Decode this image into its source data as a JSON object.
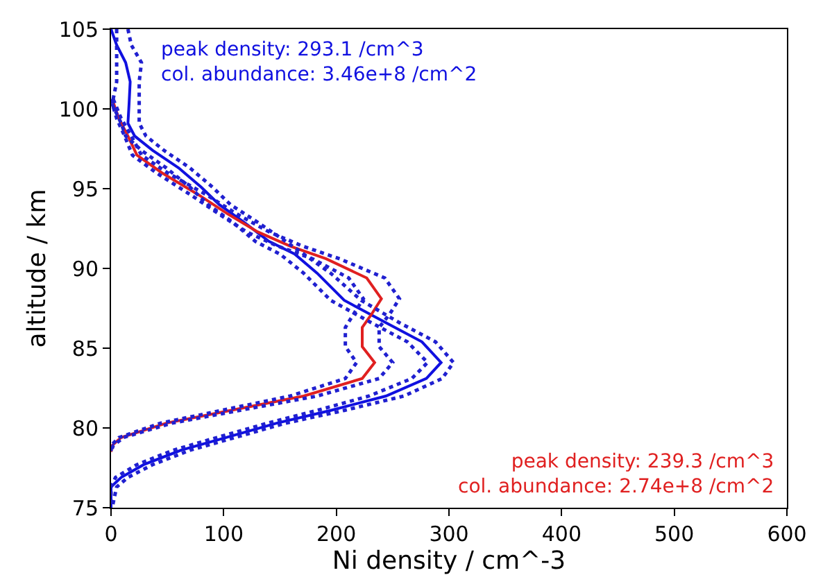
{
  "chart_data": {
    "type": "line",
    "xlabel": "Ni density / cm^-3",
    "ylabel": "altitude / km",
    "xlim": [
      0,
      600
    ],
    "xticks": [
      0,
      100,
      200,
      300,
      400,
      500,
      600
    ],
    "ylim": [
      75,
      105
    ],
    "yticks": [
      75,
      80,
      85,
      90,
      95,
      100,
      105
    ],
    "marker": "none",
    "annotations": [
      "peak density: 293.1 /cm^3\ncol. abundance: 3.46e+8 /cm^2",
      "peak density: 239.3 /cm^3\ncol. abundance: 2.74e+8 /cm^2"
    ],
    "series": [
      {
        "color": "#1010e0",
        "line_style": "solid",
        "x": [
          0,
          5,
          13,
          17,
          16,
          15,
          21,
          37,
          60,
          80,
          96,
          118,
          140,
          163,
          183,
          207,
          244,
          276,
          293,
          280,
          244,
          195,
          147,
          102,
          62,
          29,
          9,
          0,
          0
        ],
        "values": [
          105,
          104,
          102.9,
          101.7,
          100.3,
          99.1,
          98.3,
          97.4,
          96.3,
          95.1,
          94,
          92.9,
          91.7,
          90.9,
          89.7,
          88,
          86.6,
          85.4,
          84.1,
          83.1,
          82,
          81.1,
          80.3,
          79.4,
          78.6,
          77.7,
          76.9,
          76.3,
          75
        ]
      },
      {
        "color": "#e02020",
        "line_style": "solid",
        "x": [
          1,
          7,
          15,
          23,
          45,
          78,
          104,
          130,
          159,
          191,
          227,
          240,
          231,
          223,
          223,
          234,
          223,
          171,
          106,
          49,
          9,
          1,
          0
        ],
        "values": [
          100.6,
          99.4,
          98.3,
          97.1,
          96,
          94.6,
          93.4,
          92.3,
          91.4,
          90.6,
          89.4,
          88.1,
          87.1,
          86.3,
          85.1,
          84.1,
          83.1,
          82,
          81.1,
          80.3,
          79.4,
          78.9,
          78.5
        ]
      },
      {
        "color": "#2020d0",
        "line_style": "dotted",
        "x": [
          15,
          18,
          27,
          25,
          25,
          25,
          31,
          47,
          70,
          90,
          106,
          130,
          155,
          171,
          195,
          222,
          256,
          288,
          304,
          294,
          260,
          207,
          155,
          110,
          70,
          37,
          15,
          5,
          1
        ],
        "values": [
          105,
          104,
          102.9,
          101.7,
          100.3,
          99.1,
          98.3,
          97.4,
          96.3,
          95.1,
          94,
          92.9,
          91.7,
          90.9,
          89.7,
          88,
          86.6,
          85.4,
          84.1,
          83.1,
          82,
          81.1,
          80.3,
          79.4,
          78.6,
          77.7,
          76.9,
          76.3,
          75
        ]
      },
      {
        "color": "#2020d0",
        "line_style": "dotted",
        "x": [
          5,
          5,
          5,
          5,
          1,
          9,
          13,
          27,
          49,
          70,
          86,
          108,
          128,
          150,
          171,
          195,
          231,
          263,
          281,
          267,
          229,
          183,
          139,
          94,
          55,
          23,
          4,
          0,
          0
        ],
        "values": [
          105,
          104,
          102.9,
          101.7,
          100.3,
          99.1,
          98.3,
          97.4,
          96.3,
          95.1,
          94,
          92.9,
          91.7,
          90.9,
          89.7,
          88,
          86.6,
          85.4,
          84.1,
          83.1,
          82,
          81.1,
          80.3,
          79.4,
          78.6,
          77.7,
          76.9,
          76.3,
          75
        ]
      },
      {
        "color": "#2020d0",
        "line_style": "dotted",
        "x": [
          2,
          9,
          18,
          27,
          50,
          85,
          112,
          140,
          170,
          203,
          243,
          256,
          247,
          238,
          238,
          250,
          238,
          183,
          114,
          54,
          11,
          2,
          0
        ],
        "values": [
          100.6,
          99.4,
          98.3,
          97.1,
          96,
          94.6,
          93.4,
          92.3,
          91.4,
          90.6,
          89.4,
          88.1,
          87.1,
          86.3,
          85.1,
          84.1,
          83.1,
          82,
          81.1,
          80.3,
          79.4,
          78.9,
          78.5
        ]
      },
      {
        "color": "#2020d0",
        "line_style": "dotted",
        "x": [
          0,
          5,
          12,
          19,
          40,
          71,
          96,
          120,
          148,
          179,
          211,
          224,
          215,
          208,
          208,
          218,
          208,
          159,
          98,
          44,
          7,
          0,
          0
        ],
        "values": [
          100.6,
          99.4,
          98.3,
          97.1,
          96,
          94.6,
          93.4,
          92.3,
          91.4,
          90.6,
          89.4,
          88.1,
          87.1,
          86.3,
          85.1,
          84.1,
          83.1,
          82,
          81.1,
          80.3,
          79.4,
          78.9,
          78.5
        ]
      }
    ]
  }
}
